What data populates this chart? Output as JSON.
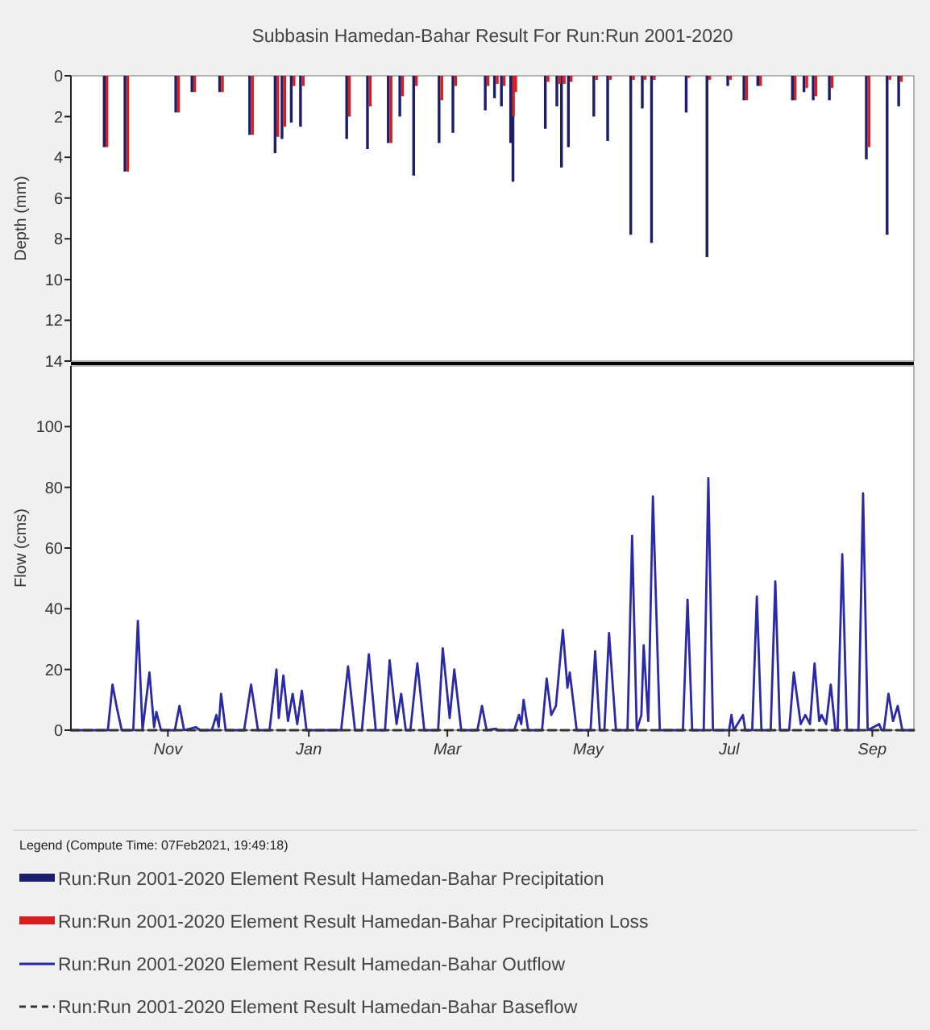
{
  "chart_data": [
    {
      "type": "bar",
      "title": "Subbasin Hamedan-Bahar Result For Run:Run 2001-2020",
      "ylabel": "Depth (mm)",
      "x": [
        "2019-10-05",
        "2019-10-14",
        "2019-11-05",
        "2019-11-12",
        "2019-11-24",
        "2019-12-07",
        "2019-12-18",
        "2019-12-21",
        "2019-12-25",
        "2019-12-29",
        "2020-01-18",
        "2020-01-27",
        "2020-02-05",
        "2020-02-10",
        "2020-02-16",
        "2020-02-27",
        "2020-03-04",
        "2020-03-18",
        "2020-03-22",
        "2020-03-25",
        "2020-03-29",
        "2020-03-30",
        "2020-04-13",
        "2020-04-18",
        "2020-04-20",
        "2020-04-23",
        "2020-05-04",
        "2020-05-10",
        "2020-05-20",
        "2020-05-25",
        "2020-05-29",
        "2020-06-13",
        "2020-06-22",
        "2020-07-01",
        "2020-07-08",
        "2020-07-14",
        "2020-07-29",
        "2020-08-03",
        "2020-08-07",
        "2020-08-14",
        "2020-08-30",
        "2020-09-08",
        "2020-09-13"
      ],
      "xlim": [
        "2019-09-20",
        "2020-09-19"
      ],
      "ylim": [
        14,
        0
      ],
      "yticks": [
        0,
        2,
        4,
        6,
        8,
        10,
        12,
        14
      ],
      "tick_labels": "y",
      "legend": "bottom",
      "series": [
        {
          "name": "Run:Run 2001-2020 Element Result Hamedan-Bahar Precipitation",
          "color": "#1b1f6b",
          "values": [
            3.5,
            4.7,
            1.8,
            0.8,
            0.8,
            2.9,
            3.8,
            3.1,
            2.3,
            2.5,
            3.1,
            3.6,
            3.3,
            2.0,
            4.9,
            3.3,
            2.8,
            1.7,
            1.1,
            1.5,
            3.3,
            5.2,
            2.6,
            1.5,
            4.5,
            3.5,
            2.0,
            3.2,
            7.8,
            1.6,
            8.2,
            1.8,
            8.9,
            0.5,
            1.2,
            0.5,
            1.2,
            0.8,
            1.2,
            1.2,
            4.1,
            7.8,
            1.5
          ]
        },
        {
          "name": "Run:Run 2001-2020 Element Result Hamedan-Bahar Precipitation Loss",
          "color": "#d42020",
          "values": [
            3.5,
            4.7,
            1.8,
            0.8,
            0.8,
            2.9,
            3.0,
            2.5,
            0.5,
            0.5,
            2.0,
            1.5,
            3.3,
            1.0,
            0.5,
            1.2,
            0.5,
            0.5,
            0.4,
            0.5,
            2.0,
            0.8,
            0.3,
            0.4,
            0.4,
            0.3,
            0.2,
            0.2,
            0.2,
            0.2,
            0.2,
            0.1,
            0.2,
            0.2,
            1.2,
            0.5,
            1.2,
            0.6,
            1.0,
            0.6,
            3.5,
            0.2,
            0.3
          ]
        }
      ]
    },
    {
      "type": "line",
      "ylabel": "Flow (cms)",
      "xlim": [
        "2019-09-20",
        "2020-09-19"
      ],
      "xticks": [
        {
          "value": "2019-11-01",
          "label": "Nov"
        },
        {
          "value": "2020-01-01",
          "label": "Jan"
        },
        {
          "value": "2020-03-01",
          "label": "Mar"
        },
        {
          "value": "2020-05-01",
          "label": "May"
        },
        {
          "value": "2020-07-01",
          "label": "Jul"
        },
        {
          "value": "2020-09-01",
          "label": "Sep"
        }
      ],
      "ylim": [
        0,
        120
      ],
      "yticks": [
        0,
        20,
        40,
        60,
        80,
        100
      ],
      "legend": "bottom",
      "legend_title": "Legend (Compute Time: 07Feb2021, 19:49:18)",
      "series": [
        {
          "name": "Run:Run 2001-2020 Element Result Hamedan-Bahar Outflow",
          "color": "#2a2aa8",
          "x": [
            "2019-09-20",
            "2019-10-06",
            "2019-10-08",
            "2019-10-10",
            "2019-10-12",
            "2019-10-17",
            "2019-10-19",
            "2019-10-21",
            "2019-10-24",
            "2019-10-26",
            "2019-10-27",
            "2019-10-29",
            "2019-11-04",
            "2019-11-06",
            "2019-11-08",
            "2019-11-13",
            "2019-11-15",
            "2019-11-20",
            "2019-11-22",
            "2019-11-23",
            "2019-11-24",
            "2019-11-26",
            "2019-12-04",
            "2019-12-07",
            "2019-12-10",
            "2019-12-15",
            "2019-12-18",
            "2019-12-19",
            "2019-12-21",
            "2019-12-23",
            "2019-12-25",
            "2019-12-27",
            "2019-12-29",
            "2019-12-31",
            "2020-01-15",
            "2020-01-18",
            "2020-01-21",
            "2020-01-24",
            "2020-01-27",
            "2020-01-30",
            "2020-02-03",
            "2020-02-05",
            "2020-02-08",
            "2020-02-10",
            "2020-02-12",
            "2020-02-14",
            "2020-02-17",
            "2020-02-20",
            "2020-02-26",
            "2020-02-28",
            "2020-03-02",
            "2020-03-04",
            "2020-03-07",
            "2020-03-14",
            "2020-03-16",
            "2020-03-18",
            "2020-03-22",
            "2020-03-23",
            "2020-03-30",
            "2020-04-01",
            "2020-04-02",
            "2020-04-03",
            "2020-04-05",
            "2020-04-11",
            "2020-04-13",
            "2020-04-15",
            "2020-04-17",
            "2020-04-20",
            "2020-04-22",
            "2020-04-23",
            "2020-04-26",
            "2020-05-02",
            "2020-05-04",
            "2020-05-06",
            "2020-05-08",
            "2020-05-10",
            "2020-05-13",
            "2020-05-18",
            "2020-05-20",
            "2020-05-22",
            "2020-05-24",
            "2020-05-25",
            "2020-05-27",
            "2020-05-29",
            "2020-06-01",
            "2020-06-11",
            "2020-06-13",
            "2020-06-15",
            "2020-06-20",
            "2020-06-22",
            "2020-06-24",
            "2020-07-01",
            "2020-07-02",
            "2020-07-03",
            "2020-07-07",
            "2020-07-08",
            "2020-07-11",
            "2020-07-13",
            "2020-07-15",
            "2020-07-19",
            "2020-07-21",
            "2020-07-23",
            "2020-07-27",
            "2020-07-29",
            "2020-08-01",
            "2020-08-03",
            "2020-08-05",
            "2020-08-07",
            "2020-08-09",
            "2020-08-10",
            "2020-08-12",
            "2020-08-14",
            "2020-08-16",
            "2020-08-17",
            "2020-08-19",
            "2020-08-21",
            "2020-08-26",
            "2020-08-28",
            "2020-08-30",
            "2020-09-04",
            "2020-09-05",
            "2020-09-06",
            "2020-09-08",
            "2020-09-10",
            "2020-09-12",
            "2020-09-14",
            "2020-09-19"
          ],
          "values": [
            0,
            0,
            15,
            7,
            0,
            0,
            36,
            0,
            19,
            1,
            6,
            0,
            0,
            8,
            0,
            1,
            0,
            0,
            5,
            1,
            12,
            0,
            0,
            15,
            0,
            0,
            20,
            4,
            18,
            3,
            12,
            2,
            13,
            0,
            0,
            21,
            0,
            0,
            25,
            0,
            0,
            23,
            2,
            12,
            0,
            0,
            22,
            0,
            0,
            27,
            4,
            20,
            0,
            0,
            8,
            0,
            0.5,
            0,
            0,
            5,
            2,
            10,
            0,
            0,
            17,
            5,
            8,
            33,
            14,
            19,
            0,
            0,
            26,
            0,
            0,
            32,
            0,
            0,
            64,
            0,
            5,
            28,
            3,
            77,
            0,
            0,
            43,
            0,
            0,
            83,
            0,
            0,
            5,
            0,
            5,
            0,
            0,
            44,
            0,
            0,
            49,
            0,
            0,
            19,
            2,
            5,
            2,
            22,
            3,
            5,
            2,
            15,
            0,
            0,
            58,
            0,
            0,
            78,
            0,
            2,
            0,
            0,
            12,
            3,
            8,
            0,
            0
          ]
        },
        {
          "name": "Run:Run 2001-2020 Element Result Hamedan-Bahar Baseflow",
          "color": "#333333",
          "line_style": "dashed",
          "x": [
            "2019-09-20",
            "2020-09-19"
          ],
          "values": [
            0,
            0
          ]
        }
      ]
    }
  ]
}
